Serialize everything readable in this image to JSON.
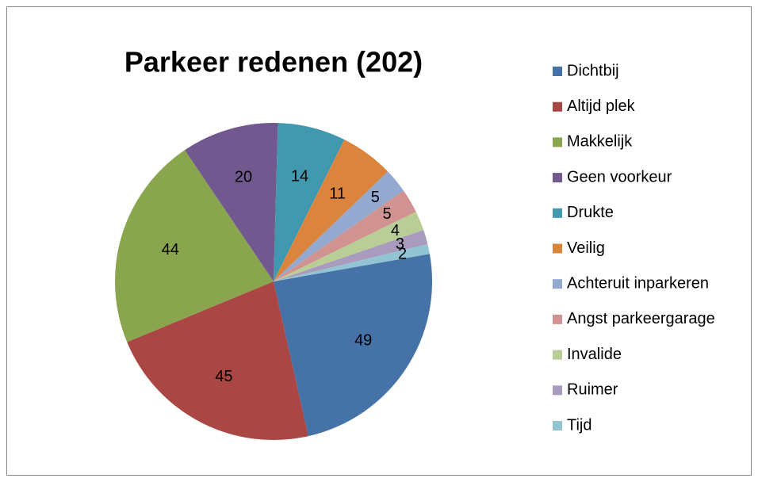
{
  "chart_data": {
    "type": "pie",
    "title": "Parkeer redenen (202)",
    "categories": [
      "Dichtbij",
      "Altijd plek",
      "Makkelijk",
      "Geen voorkeur",
      "Drukte",
      "Veilig",
      "Achteruit inparkeren",
      "Angst parkeergarage",
      "Invalide",
      "Ruimer",
      "Tijd"
    ],
    "values": [
      49,
      45,
      44,
      20,
      14,
      11,
      5,
      5,
      4,
      3,
      2
    ],
    "colors": [
      "#4572a7",
      "#aa4643",
      "#89a54e",
      "#71588f",
      "#4198af",
      "#db843d",
      "#93a9cf",
      "#d19392",
      "#b9cd96",
      "#a99bbd",
      "#92c5d4"
    ],
    "legend": "right"
  }
}
